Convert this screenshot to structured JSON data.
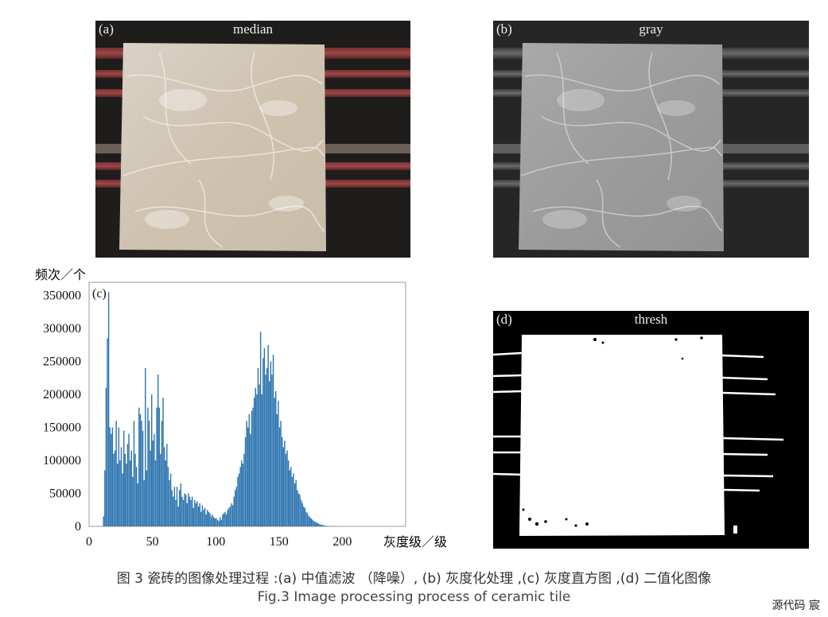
{
  "panels": {
    "a": {
      "tag": "(a)",
      "title": "median"
    },
    "b": {
      "tag": "(b)",
      "title": "gray"
    },
    "c": {
      "tag": "(c)"
    },
    "d": {
      "tag": "(d)",
      "title": "thresh"
    }
  },
  "chart_data": {
    "type": "bar",
    "title": "",
    "xlabel": "灰度级／级",
    "ylabel": "频次／个",
    "xlim": [
      0,
      250
    ],
    "ylim": [
      0,
      370000
    ],
    "xticks": [
      0,
      50,
      100,
      150,
      200
    ],
    "yticks": [
      0,
      50000,
      100000,
      150000,
      200000,
      250000,
      300000,
      350000
    ],
    "color": "#2e75b0",
    "x_start": 10,
    "values": [
      0,
      15000,
      85000,
      210000,
      285000,
      355000,
      150000,
      140000,
      150000,
      110000,
      115000,
      160000,
      95000,
      150000,
      100000,
      120000,
      80000,
      145000,
      110000,
      95000,
      125000,
      140000,
      100000,
      115000,
      75000,
      160000,
      110000,
      90000,
      65000,
      180000,
      170000,
      160000,
      145000,
      70000,
      240000,
      85000,
      180000,
      160000,
      115000,
      200000,
      130000,
      140000,
      100000,
      180000,
      230000,
      180000,
      110000,
      160000,
      195000,
      120000,
      100000,
      125000,
      90000,
      70000,
      80000,
      55000,
      45000,
      60000,
      40000,
      60000,
      30000,
      55000,
      65000,
      45000,
      40000,
      50000,
      48000,
      35000,
      50000,
      45000,
      40000,
      45000,
      28000,
      40000,
      35000,
      38000,
      30000,
      35000,
      22000,
      32000,
      25000,
      28000,
      18000,
      25000,
      22000,
      20000,
      15000,
      18000,
      14000,
      12000,
      12000,
      10000,
      8000,
      14000,
      10000,
      18000,
      20000,
      22000,
      18000,
      25000,
      28000,
      30000,
      35000,
      32000,
      45000,
      55000,
      60000,
      75000,
      80000,
      90000,
      100000,
      95000,
      110000,
      135000,
      160000,
      150000,
      170000,
      140000,
      175000,
      180000,
      195000,
      210000,
      200000,
      240000,
      215000,
      295000,
      200000,
      255000,
      270000,
      230000,
      240000,
      275000,
      220000,
      250000,
      230000,
      260000,
      195000,
      205000,
      170000,
      190000,
      150000,
      160000,
      135000,
      120000,
      130000,
      110000,
      115000,
      100000,
      85000,
      90000,
      75000,
      80000,
      65000,
      70000,
      55000,
      50000,
      48000,
      40000,
      35000,
      30000,
      28000,
      22000,
      20000,
      16000,
      14000,
      12000,
      10000,
      8000,
      7000,
      6000,
      5000,
      4000,
      3000,
      2500,
      2000,
      1500,
      1000,
      800,
      500,
      300
    ]
  },
  "captions": {
    "cn": "图 3  瓷砖的图像处理过程 :(a) 中值滤波 （降噪）, (b) 灰度化处理 ,(c) 灰度直方图 ,(d) 二值化图像",
    "en": "Fig.3  Image processing process of ceramic tile"
  },
  "watermark": "源代码  宸"
}
